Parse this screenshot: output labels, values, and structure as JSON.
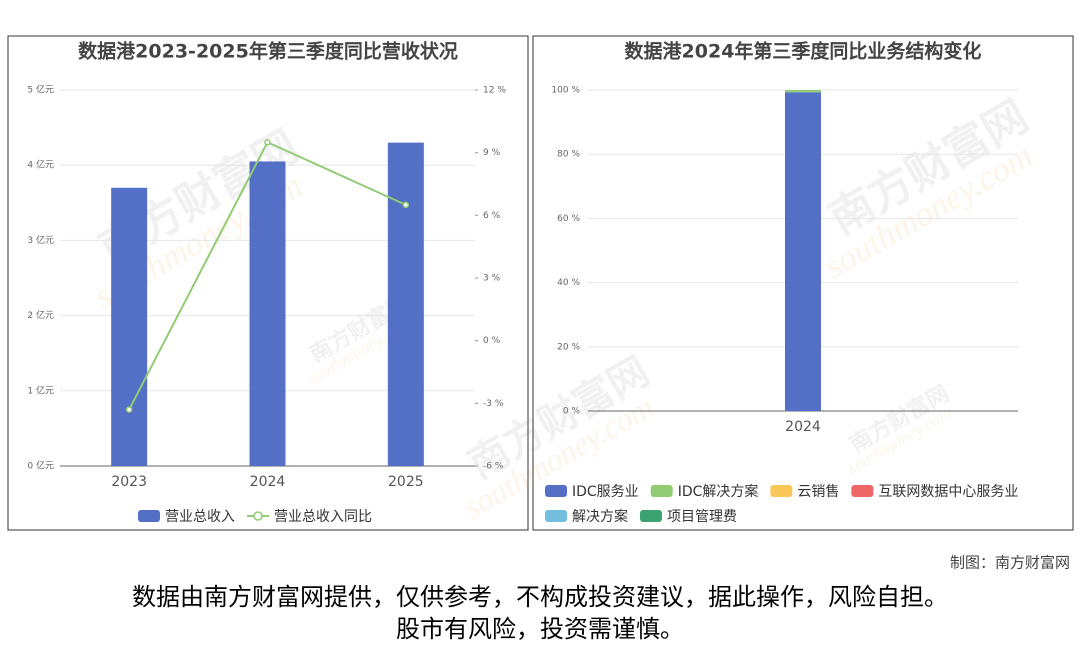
{
  "chart_data": [
    {
      "type": "bar_line",
      "title": "数据港2023-2025年第三季度同比营收状况",
      "categories": [
        "2023",
        "2024",
        "2025"
      ],
      "series": [
        {
          "name": "营业总收入",
          "color": "#5470c6",
          "values": [
            3.7,
            4.05,
            4.3
          ]
        },
        {
          "name": "营业总收入同比",
          "color": "#91cc75",
          "values": [
            -3.3,
            9.5,
            6.5
          ],
          "axis": "y2"
        }
      ],
      "ylim": [
        0,
        5
      ],
      "yticks": [
        {
          "value": 0,
          "label": "0 亿元"
        },
        {
          "value": 1,
          "label": "1 亿元"
        },
        {
          "value": 2,
          "label": "2 亿元"
        },
        {
          "value": 3,
          "label": "3 亿元"
        },
        {
          "value": 4,
          "label": "4 亿元"
        },
        {
          "value": 5,
          "label": "5 亿元"
        }
      ],
      "y2lim": [
        -6,
        12
      ],
      "y2ticks": [
        {
          "value": -6,
          "label": "-6 %"
        },
        {
          "value": -3,
          "label": "-3 %"
        },
        {
          "value": 0,
          "label": "0 %"
        },
        {
          "value": 3,
          "label": "3 %"
        },
        {
          "value": 6,
          "label": "6 %"
        },
        {
          "value": 9,
          "label": "9 %"
        },
        {
          "value": 12,
          "label": "12 %"
        }
      ],
      "grid": true
    },
    {
      "type": "stacked_bar",
      "title": "数据港2024年第三季度同比业务结构变化",
      "categories": [
        "2024"
      ],
      "series": [
        {
          "name": "IDC服务业",
          "color": "#5470c6",
          "values": [
            99.3
          ]
        },
        {
          "name": "IDC解决方案",
          "color": "#91cc75",
          "values": [
            0.7
          ]
        },
        {
          "name": "云销售",
          "color": "#fac858",
          "values": [
            0
          ]
        },
        {
          "name": "互联网数据中心服务业",
          "color": "#ee6666",
          "values": [
            0
          ]
        },
        {
          "name": "解决方案",
          "color": "#73c0de",
          "values": [
            0
          ]
        },
        {
          "name": "项目管理费",
          "color": "#3ba272",
          "values": [
            0
          ]
        }
      ],
      "ylim": [
        0,
        100
      ],
      "yticks": [
        {
          "value": 0,
          "label": "0 %"
        },
        {
          "value": 20,
          "label": "20 %"
        },
        {
          "value": 40,
          "label": "40 %"
        },
        {
          "value": 60,
          "label": "60 %"
        },
        {
          "value": 80,
          "label": "80 %"
        },
        {
          "value": 100,
          "label": "100 %"
        }
      ],
      "grid": true
    }
  ],
  "watermark": [
    "南方财富网",
    "southmoney.com"
  ],
  "footer": {
    "credit": "制图：南方财富网",
    "disclaimer": [
      "数据由南方财富网提供，仅供参考，不构成投资建议，据此操作，风险自担。",
      "股市有风险，投资需谨慎。"
    ]
  }
}
